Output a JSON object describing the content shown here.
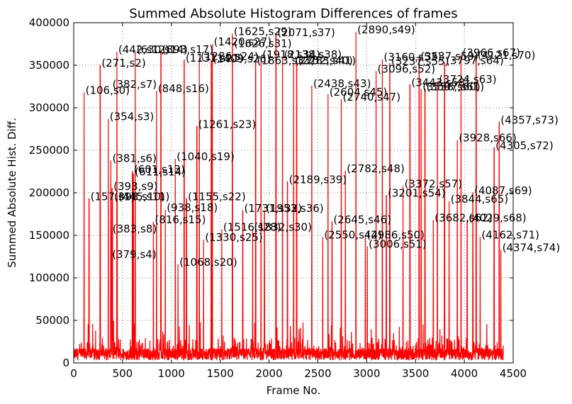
{
  "chart_data": {
    "type": "line",
    "title": "Summed Absolute Histogram Differences of frames",
    "xlabel": "Frame No.",
    "ylabel": "Summed Absolute Hist. Diff.",
    "xlim": [
      0,
      4500
    ],
    "ylim": [
      0,
      400000
    ],
    "xticks": [
      0,
      500,
      1000,
      1500,
      2000,
      2500,
      3000,
      3500,
      4000,
      4500
    ],
    "yticks": [
      0,
      50000,
      100000,
      150000,
      200000,
      250000,
      300000,
      350000,
      400000
    ],
    "grid": true,
    "line_color": "#ff0000",
    "baseline": {
      "start_frame": 0,
      "end_frame": 4400,
      "typical_level": 15000,
      "noise_range": [
        3000,
        30000
      ]
    },
    "peaks": [
      {
        "label": "(106,s0)",
        "x": 106,
        "y": 318000
      },
      {
        "label": "(157,s1)",
        "x": 157,
        "y": 193000
      },
      {
        "label": "(271,s2)",
        "x": 271,
        "y": 350000
      },
      {
        "label": "(354,s3)",
        "x": 354,
        "y": 287000
      },
      {
        "label": "(379,s4)",
        "x": 379,
        "y": 125000
      },
      {
        "label": "(381,s6)",
        "x": 381,
        "y": 238000
      },
      {
        "label": "(382,s7)",
        "x": 382,
        "y": 325000
      },
      {
        "label": "(383,s8)",
        "x": 383,
        "y": 155000
      },
      {
        "label": "(393,s9)",
        "x": 393,
        "y": 205000
      },
      {
        "label": "(398,s10)",
        "x": 398,
        "y": 193000
      },
      {
        "label": "(445,s11)",
        "x": 445,
        "y": 193000
      },
      {
        "label": "(442,s12)",
        "x": 442,
        "y": 366000
      },
      {
        "label": "(601,s13)",
        "x": 601,
        "y": 225000
      },
      {
        "label": "(611,s14)",
        "x": 611,
        "y": 222000
      },
      {
        "label": "(630,s14)",
        "x": 630,
        "y": 366000
      },
      {
        "label": "(816,s15)",
        "x": 816,
        "y": 166000
      },
      {
        "label": "(848,s16)",
        "x": 848,
        "y": 320000
      },
      {
        "label": "(893,s17)",
        "x": 893,
        "y": 366000
      },
      {
        "label": "(938,s18)",
        "x": 938,
        "y": 180000
      },
      {
        "label": "(1040,s19)",
        "x": 1040,
        "y": 240000
      },
      {
        "label": "(1068,s20)",
        "x": 1068,
        "y": 116000
      },
      {
        "label": "(1131,s21)",
        "x": 1131,
        "y": 356000
      },
      {
        "label": "(1155,s22)",
        "x": 1155,
        "y": 193000
      },
      {
        "label": "(1261,s23)",
        "x": 1261,
        "y": 278000
      },
      {
        "label": "(1286,s24)",
        "x": 1286,
        "y": 358000
      },
      {
        "label": "(1330,s25)",
        "x": 1330,
        "y": 145000
      },
      {
        "label": "(1409,s26)",
        "x": 1409,
        "y": 355000
      },
      {
        "label": "(1420,s27)",
        "x": 1420,
        "y": 375000
      },
      {
        "label": "(1516,s28)",
        "x": 1516,
        "y": 157000
      },
      {
        "label": "(1625,s29)",
        "x": 1625,
        "y": 387000
      },
      {
        "label": "(1626,s31)",
        "x": 1626,
        "y": 373000
      },
      {
        "label": "(1731,s32)",
        "x": 1731,
        "y": 179000
      },
      {
        "label": "(1832,s30)",
        "x": 1832,
        "y": 157000
      },
      {
        "label": "(1863,s33)",
        "x": 1863,
        "y": 353000
      },
      {
        "label": "(1918,s34)",
        "x": 1918,
        "y": 360000
      },
      {
        "label": "(1953,s36)",
        "x": 1953,
        "y": 179000
      },
      {
        "label": "(2071,s37)",
        "x": 2071,
        "y": 386000
      },
      {
        "label": "(2138,s38)",
        "x": 2138,
        "y": 360000
      },
      {
        "label": "(2189,s39)",
        "x": 2189,
        "y": 213000
      },
      {
        "label": "(2252,s40)",
        "x": 2252,
        "y": 353000
      },
      {
        "label": "(2283,s41)",
        "x": 2283,
        "y": 353000
      },
      {
        "label": "(2438,s43)",
        "x": 2438,
        "y": 326000
      },
      {
        "label": "(2550,s44)",
        "x": 2550,
        "y": 148000
      },
      {
        "label": "(2604,s45)",
        "x": 2604,
        "y": 316000
      },
      {
        "label": "(2645,s46)",
        "x": 2645,
        "y": 166000
      },
      {
        "label": "(2740,s47)",
        "x": 2740,
        "y": 310000
      },
      {
        "label": "(2782,s48)",
        "x": 2782,
        "y": 226000
      },
      {
        "label": "(2890,s49)",
        "x": 2890,
        "y": 389000
      },
      {
        "label": "(2986,s50)",
        "x": 2986,
        "y": 148000
      },
      {
        "label": "(3006,s51)",
        "x": 3006,
        "y": 137000
      },
      {
        "label": "(3096,s52)",
        "x": 3096,
        "y": 343000
      },
      {
        "label": "(3160,s53)",
        "x": 3160,
        "y": 357000
      },
      {
        "label": "(3201,s54)",
        "x": 3201,
        "y": 197000
      },
      {
        "label": "(3237,s55)",
        "x": 3237,
        "y": 352000
      },
      {
        "label": "(3372,s57)",
        "x": 3372,
        "y": 208000
      },
      {
        "label": "(3443,s58)",
        "x": 3443,
        "y": 327000
      },
      {
        "label": "(3537,s59)",
        "x": 3537,
        "y": 358000
      },
      {
        "label": "(3558,s60)",
        "x": 3558,
        "y": 322000
      },
      {
        "label": "(3597,s61)",
        "x": 3597,
        "y": 322000
      },
      {
        "label": "(3682,s62)",
        "x": 3682,
        "y": 168000
      },
      {
        "label": "(3724,s63)",
        "x": 3724,
        "y": 331000
      },
      {
        "label": "(3797,s64)",
        "x": 3797,
        "y": 353000
      },
      {
        "label": "(3844,s65)",
        "x": 3844,
        "y": 190000
      },
      {
        "label": "(3928,s66)",
        "x": 3928,
        "y": 262000
      },
      {
        "label": "(3966,s67)",
        "x": 3966,
        "y": 362000
      },
      {
        "label": "(4029,s68)",
        "x": 4029,
        "y": 168000
      },
      {
        "label": "(4087,s69)",
        "x": 4087,
        "y": 200000
      },
      {
        "label": "(4121,s70)",
        "x": 4121,
        "y": 359000
      },
      {
        "label": "(4162,s71)",
        "x": 4162,
        "y": 148000
      },
      {
        "label": "(4305,s72)",
        "x": 4305,
        "y": 253000
      },
      {
        "label": "(4357,s73)",
        "x": 4357,
        "y": 283000
      },
      {
        "label": "(4374,s74)",
        "x": 4374,
        "y": 133000
      }
    ]
  }
}
